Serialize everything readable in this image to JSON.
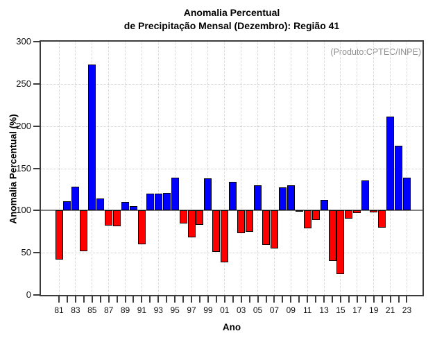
{
  "title": {
    "line1": "Anomalia Percentual",
    "line2": "de Precipitação Mensal (Dezembro): Região 41"
  },
  "annotation": "(Produto:CPTEC/INPE)",
  "chart_data": {
    "type": "bar",
    "title": "Anomalia Percentual de Precipitação Mensal (Dezembro): Região 41",
    "xlabel": "Ano",
    "ylabel": "Anomalia Percentual (%)",
    "ylim": [
      0,
      300
    ],
    "yticks": [
      0,
      50,
      100,
      150,
      200,
      250,
      300
    ],
    "baseline": 100,
    "grid": "dotted",
    "legend": "none",
    "categories": [
      "81",
      "82",
      "83",
      "84",
      "85",
      "86",
      "87",
      "88",
      "89",
      "90",
      "91",
      "92",
      "93",
      "94",
      "95",
      "96",
      "97",
      "98",
      "99",
      "00",
      "01",
      "02",
      "03",
      "04",
      "05",
      "06",
      "07",
      "08",
      "09",
      "10",
      "11",
      "12",
      "13",
      "14",
      "15",
      "16",
      "17",
      "18",
      "19",
      "20",
      "21",
      "22",
      "23"
    ],
    "values": [
      42,
      111,
      128,
      52,
      273,
      114,
      82,
      81,
      110,
      105,
      60,
      120,
      120,
      121,
      139,
      85,
      68,
      83,
      138,
      51,
      39,
      134,
      73,
      75,
      130,
      59,
      55,
      127,
      130,
      100,
      79,
      89,
      113,
      40,
      25,
      90,
      97,
      136,
      98,
      80,
      211,
      177,
      139
    ],
    "x_tick_labels": [
      "81",
      "83",
      "85",
      "87",
      "89",
      "91",
      "93",
      "95",
      "97",
      "99",
      "01",
      "03",
      "05",
      "07",
      "09",
      "11",
      "13",
      "15",
      "17",
      "19",
      "21",
      "23"
    ],
    "colors": {
      "above_baseline": "#0000ff",
      "below_baseline": "#ff0000",
      "baseline_line": "#808080",
      "bar_outline": "#000000",
      "grid_line": "#d0d0d0",
      "frame": "#3c3c3c",
      "annotation_text": "#909090"
    }
  }
}
